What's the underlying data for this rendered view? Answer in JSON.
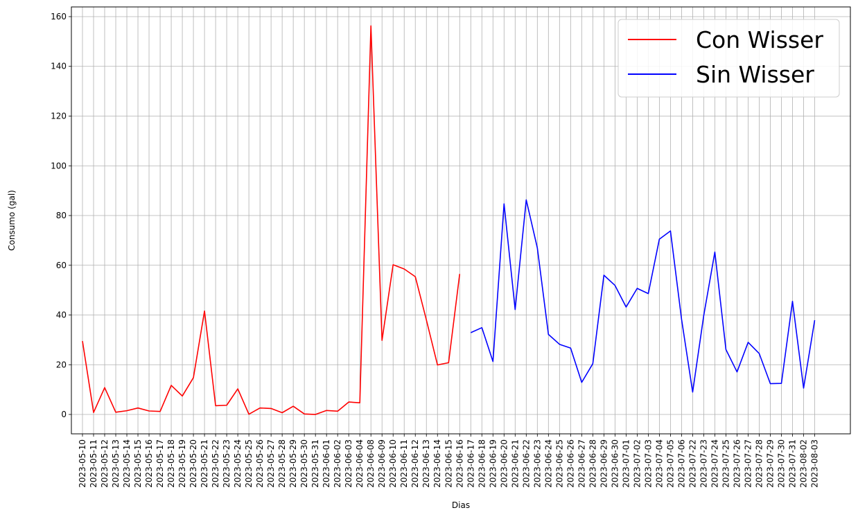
{
  "chart_data": {
    "type": "line",
    "title": "",
    "xlabel": "Dias",
    "ylabel": "Consumo (gal)",
    "ylim": [
      -7.8,
      163.9
    ],
    "yticks": [
      0,
      20,
      40,
      60,
      80,
      100,
      120,
      140,
      160
    ],
    "grid": true,
    "legend_position": "top-right",
    "categories": [
      "2023-05-10",
      "2023-05-11",
      "2023-05-12",
      "2023-05-13",
      "2023-05-14",
      "2023-05-15",
      "2023-05-16",
      "2023-05-17",
      "2023-05-18",
      "2023-05-19",
      "2023-05-20",
      "2023-05-21",
      "2023-05-22",
      "2023-05-23",
      "2023-05-24",
      "2023-05-25",
      "2023-05-26",
      "2023-05-27",
      "2023-05-28",
      "2023-05-29",
      "2023-05-30",
      "2023-05-31",
      "2023-06-01",
      "2023-06-02",
      "2023-06-03",
      "2023-06-04",
      "2023-06-08",
      "2023-06-09",
      "2023-06-10",
      "2023-06-11",
      "2023-06-12",
      "2023-06-13",
      "2023-06-14",
      "2023-06-15",
      "2023-06-16",
      "2023-06-17",
      "2023-06-18",
      "2023-06-19",
      "2023-06-20",
      "2023-06-21",
      "2023-06-22",
      "2023-06-23",
      "2023-06-24",
      "2023-06-25",
      "2023-06-26",
      "2023-06-27",
      "2023-06-28",
      "2023-06-29",
      "2023-06-30",
      "2023-07-01",
      "2023-07-02",
      "2023-07-03",
      "2023-07-04",
      "2023-07-05",
      "2023-07-06",
      "2023-07-22",
      "2023-07-23",
      "2023-07-24",
      "2023-07-25",
      "2023-07-26",
      "2023-07-27",
      "2023-07-28",
      "2023-07-29",
      "2023-07-30",
      "2023-07-31",
      "2023-08-02",
      "2023-08-03"
    ],
    "series": [
      {
        "name": "Con Wisser",
        "color": "#ff0000",
        "x": [
          "2023-05-10",
          "2023-05-11",
          "2023-05-12",
          "2023-05-13",
          "2023-05-14",
          "2023-05-15",
          "2023-05-16",
          "2023-05-17",
          "2023-05-18",
          "2023-05-19",
          "2023-05-20",
          "2023-05-21",
          "2023-05-22",
          "2023-05-23",
          "2023-05-24",
          "2023-05-25",
          "2023-05-26",
          "2023-05-27",
          "2023-05-28",
          "2023-05-29",
          "2023-05-30",
          "2023-05-31",
          "2023-06-01",
          "2023-06-02",
          "2023-06-03",
          "2023-06-04",
          "2023-06-08",
          "2023-06-09",
          "2023-06-10",
          "2023-06-11",
          "2023-06-12",
          "2023-06-13",
          "2023-06-14",
          "2023-06-15",
          "2023-06-16"
        ],
        "values": [
          29.5,
          0.8,
          10.8,
          0.9,
          1.5,
          2.6,
          1.4,
          1.2,
          11.7,
          7.4,
          14.8,
          41.6,
          3.5,
          3.7,
          10.3,
          0.1,
          2.6,
          2.4,
          0.7,
          3.3,
          0.2,
          0.0,
          1.6,
          1.3,
          5.0,
          4.7,
          156.3,
          29.8,
          60.2,
          58.5,
          55.4,
          38.0,
          19.9,
          20.8,
          56.5
        ]
      },
      {
        "name": "Sin Wisser",
        "color": "#0000ff",
        "x": [
          "2023-06-17",
          "2023-06-18",
          "2023-06-19",
          "2023-06-20",
          "2023-06-21",
          "2023-06-22",
          "2023-06-23",
          "2023-06-24",
          "2023-06-25",
          "2023-06-26",
          "2023-06-27",
          "2023-06-28",
          "2023-06-29",
          "2023-06-30",
          "2023-07-01",
          "2023-07-02",
          "2023-07-03",
          "2023-07-04",
          "2023-07-05",
          "2023-07-06",
          "2023-07-22",
          "2023-07-23",
          "2023-07-24",
          "2023-07-25",
          "2023-07-26",
          "2023-07-27",
          "2023-07-28",
          "2023-07-29",
          "2023-07-30",
          "2023-07-31",
          "2023-08-02",
          "2023-08-03"
        ],
        "values": [
          32.9,
          34.9,
          21.3,
          84.7,
          42.2,
          86.3,
          67.0,
          32.2,
          28.2,
          26.7,
          12.9,
          20.4,
          56.0,
          51.9,
          43.2,
          50.7,
          48.6,
          70.5,
          73.8,
          38.3,
          9.0,
          39.8,
          65.3,
          26.1,
          17.1,
          29.0,
          24.5,
          12.4,
          12.5,
          45.5,
          10.6,
          37.9
        ]
      }
    ]
  }
}
